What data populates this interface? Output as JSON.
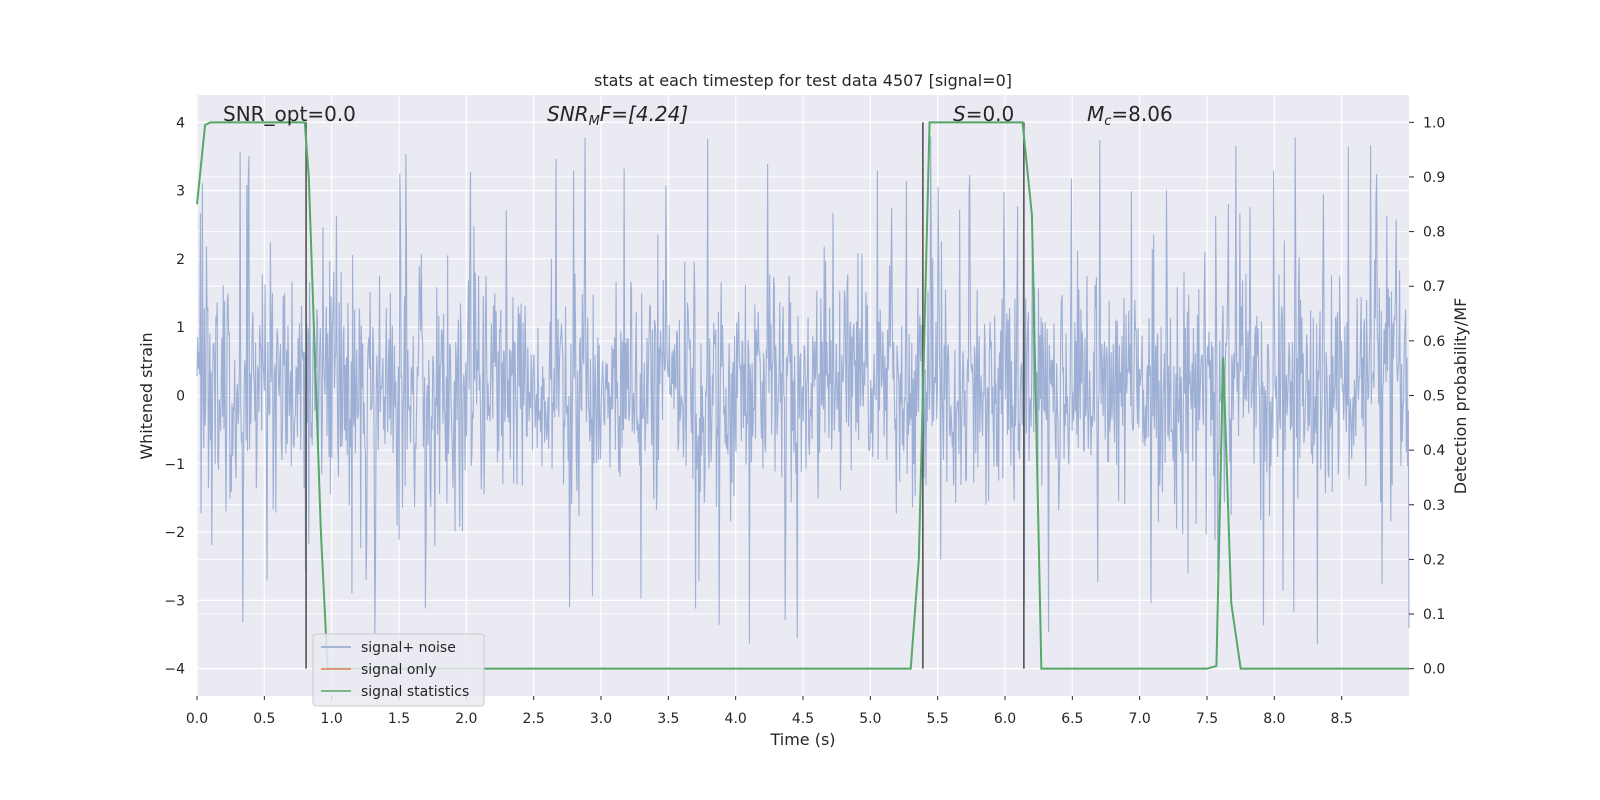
{
  "chart_data": {
    "type": "line",
    "title": "stats at each timestep for test data 4507 [signal=0]",
    "xlabel": "Time (s)",
    "ylabel_left": "Whitened strain",
    "ylabel_right": "Detection probability/MF",
    "xlim": [
      0.0,
      9.0
    ],
    "ylim_left": [
      -4.4,
      4.4
    ],
    "ylim_right": [
      -0.05,
      1.05
    ],
    "x_ticks": [
      "0.0",
      "0.5",
      "1.0",
      "1.5",
      "2.0",
      "2.5",
      "3.0",
      "3.5",
      "4.0",
      "4.5",
      "5.0",
      "5.5",
      "6.0",
      "6.5",
      "7.0",
      "7.5",
      "8.0",
      "8.5"
    ],
    "y_left_ticks": [
      "−4",
      "−3",
      "−2",
      "−1",
      "0",
      "1",
      "2",
      "3",
      "4"
    ],
    "y_right_ticks": [
      "0.0",
      "0.1",
      "0.2",
      "0.3",
      "0.4",
      "0.5",
      "0.6",
      "0.7",
      "0.8",
      "0.9",
      "1.0"
    ],
    "grid": true,
    "legend_position": "lower-left",
    "annotations": {
      "snr_opt": "SNR_opt=0.0",
      "snr_mf_main": "SNR",
      "snr_mf_sub": "M",
      "snr_mf_tail": "F=[4.24]",
      "s_main": "S",
      "s_tail": "=0.0",
      "mc_main": "M",
      "mc_sub": "c",
      "mc_tail": "=8.06"
    },
    "series": [
      {
        "name": "signal+ noise",
        "color": "#8fa4cf",
        "axis": "left",
        "description_style": "dense whitened noise, roughly within -2 to +3 with spikes"
      },
      {
        "name": "signal only",
        "color": "#dd8452",
        "axis": "left",
        "values": []
      },
      {
        "name": "signal statistics",
        "color": "#55a868",
        "axis": "right",
        "points": [
          [
            0.0,
            0.85
          ],
          [
            0.06,
            0.995
          ],
          [
            0.1,
            1.0
          ],
          [
            0.8,
            1.0
          ],
          [
            0.83,
            0.9
          ],
          [
            0.92,
            0.25
          ],
          [
            0.97,
            0.0
          ],
          [
            5.3,
            0.0
          ],
          [
            5.36,
            0.2
          ],
          [
            5.44,
            1.0
          ],
          [
            6.13,
            1.0
          ],
          [
            6.2,
            0.83
          ],
          [
            6.27,
            0.0
          ],
          [
            7.5,
            0.0
          ],
          [
            7.57,
            0.005
          ],
          [
            7.62,
            0.57
          ],
          [
            7.68,
            0.12
          ],
          [
            7.75,
            0.0
          ],
          [
            9.0,
            0.0
          ]
        ]
      }
    ],
    "vertical_markers": [
      0.81,
      5.39,
      6.14
    ]
  }
}
